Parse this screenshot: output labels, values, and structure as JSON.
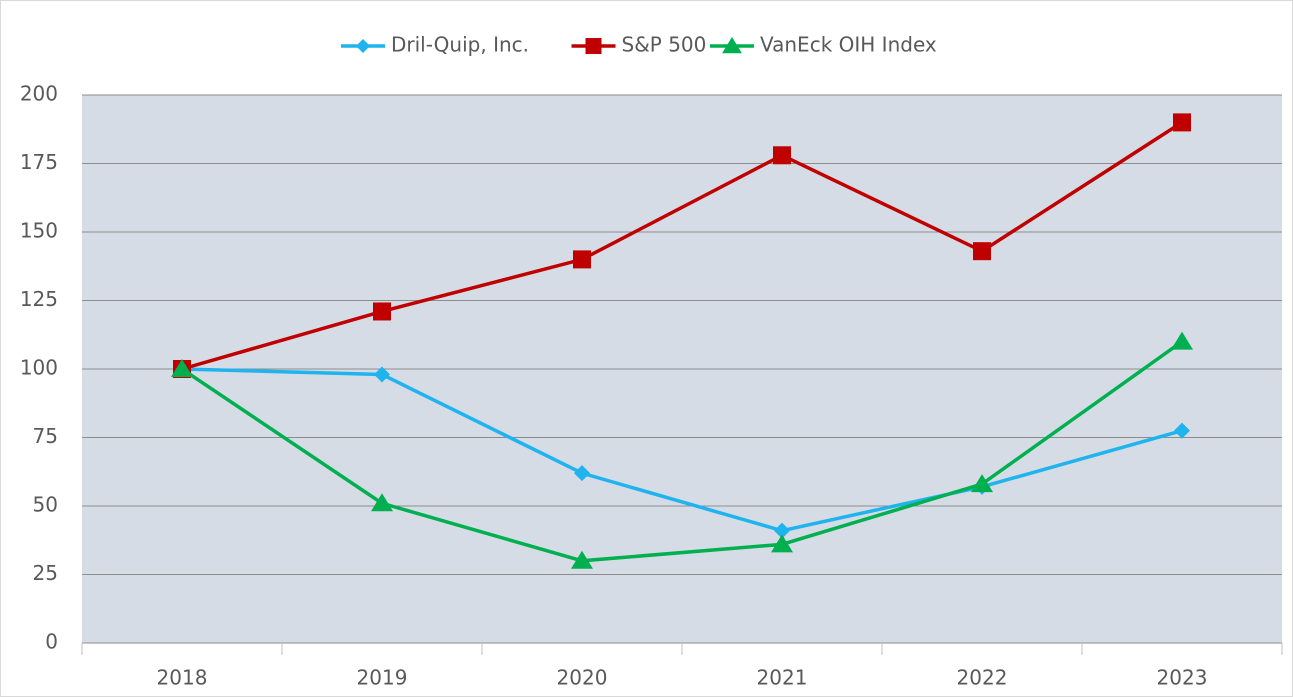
{
  "chart_data": {
    "type": "line",
    "categories": [
      "2018",
      "2019",
      "2020",
      "2021",
      "2022",
      "2023"
    ],
    "series": [
      {
        "name": "Dril-Quip, Inc.",
        "color": "#1fb4ef",
        "marker": "diamond",
        "values": [
          100,
          98,
          62,
          41,
          57,
          77.5
        ]
      },
      {
        "name": "S&P 500",
        "color": "#c00000",
        "marker": "square",
        "values": [
          100,
          121,
          140,
          178,
          143,
          190
        ]
      },
      {
        "name": "VanEck OIH Index",
        "color": "#00b050",
        "marker": "triangle",
        "values": [
          100,
          51,
          30,
          36,
          58,
          110
        ]
      }
    ],
    "ylim": [
      0,
      200
    ],
    "yticks": [
      0,
      25,
      50,
      75,
      100,
      125,
      150,
      175,
      200
    ],
    "grid": true,
    "legend": "top"
  }
}
